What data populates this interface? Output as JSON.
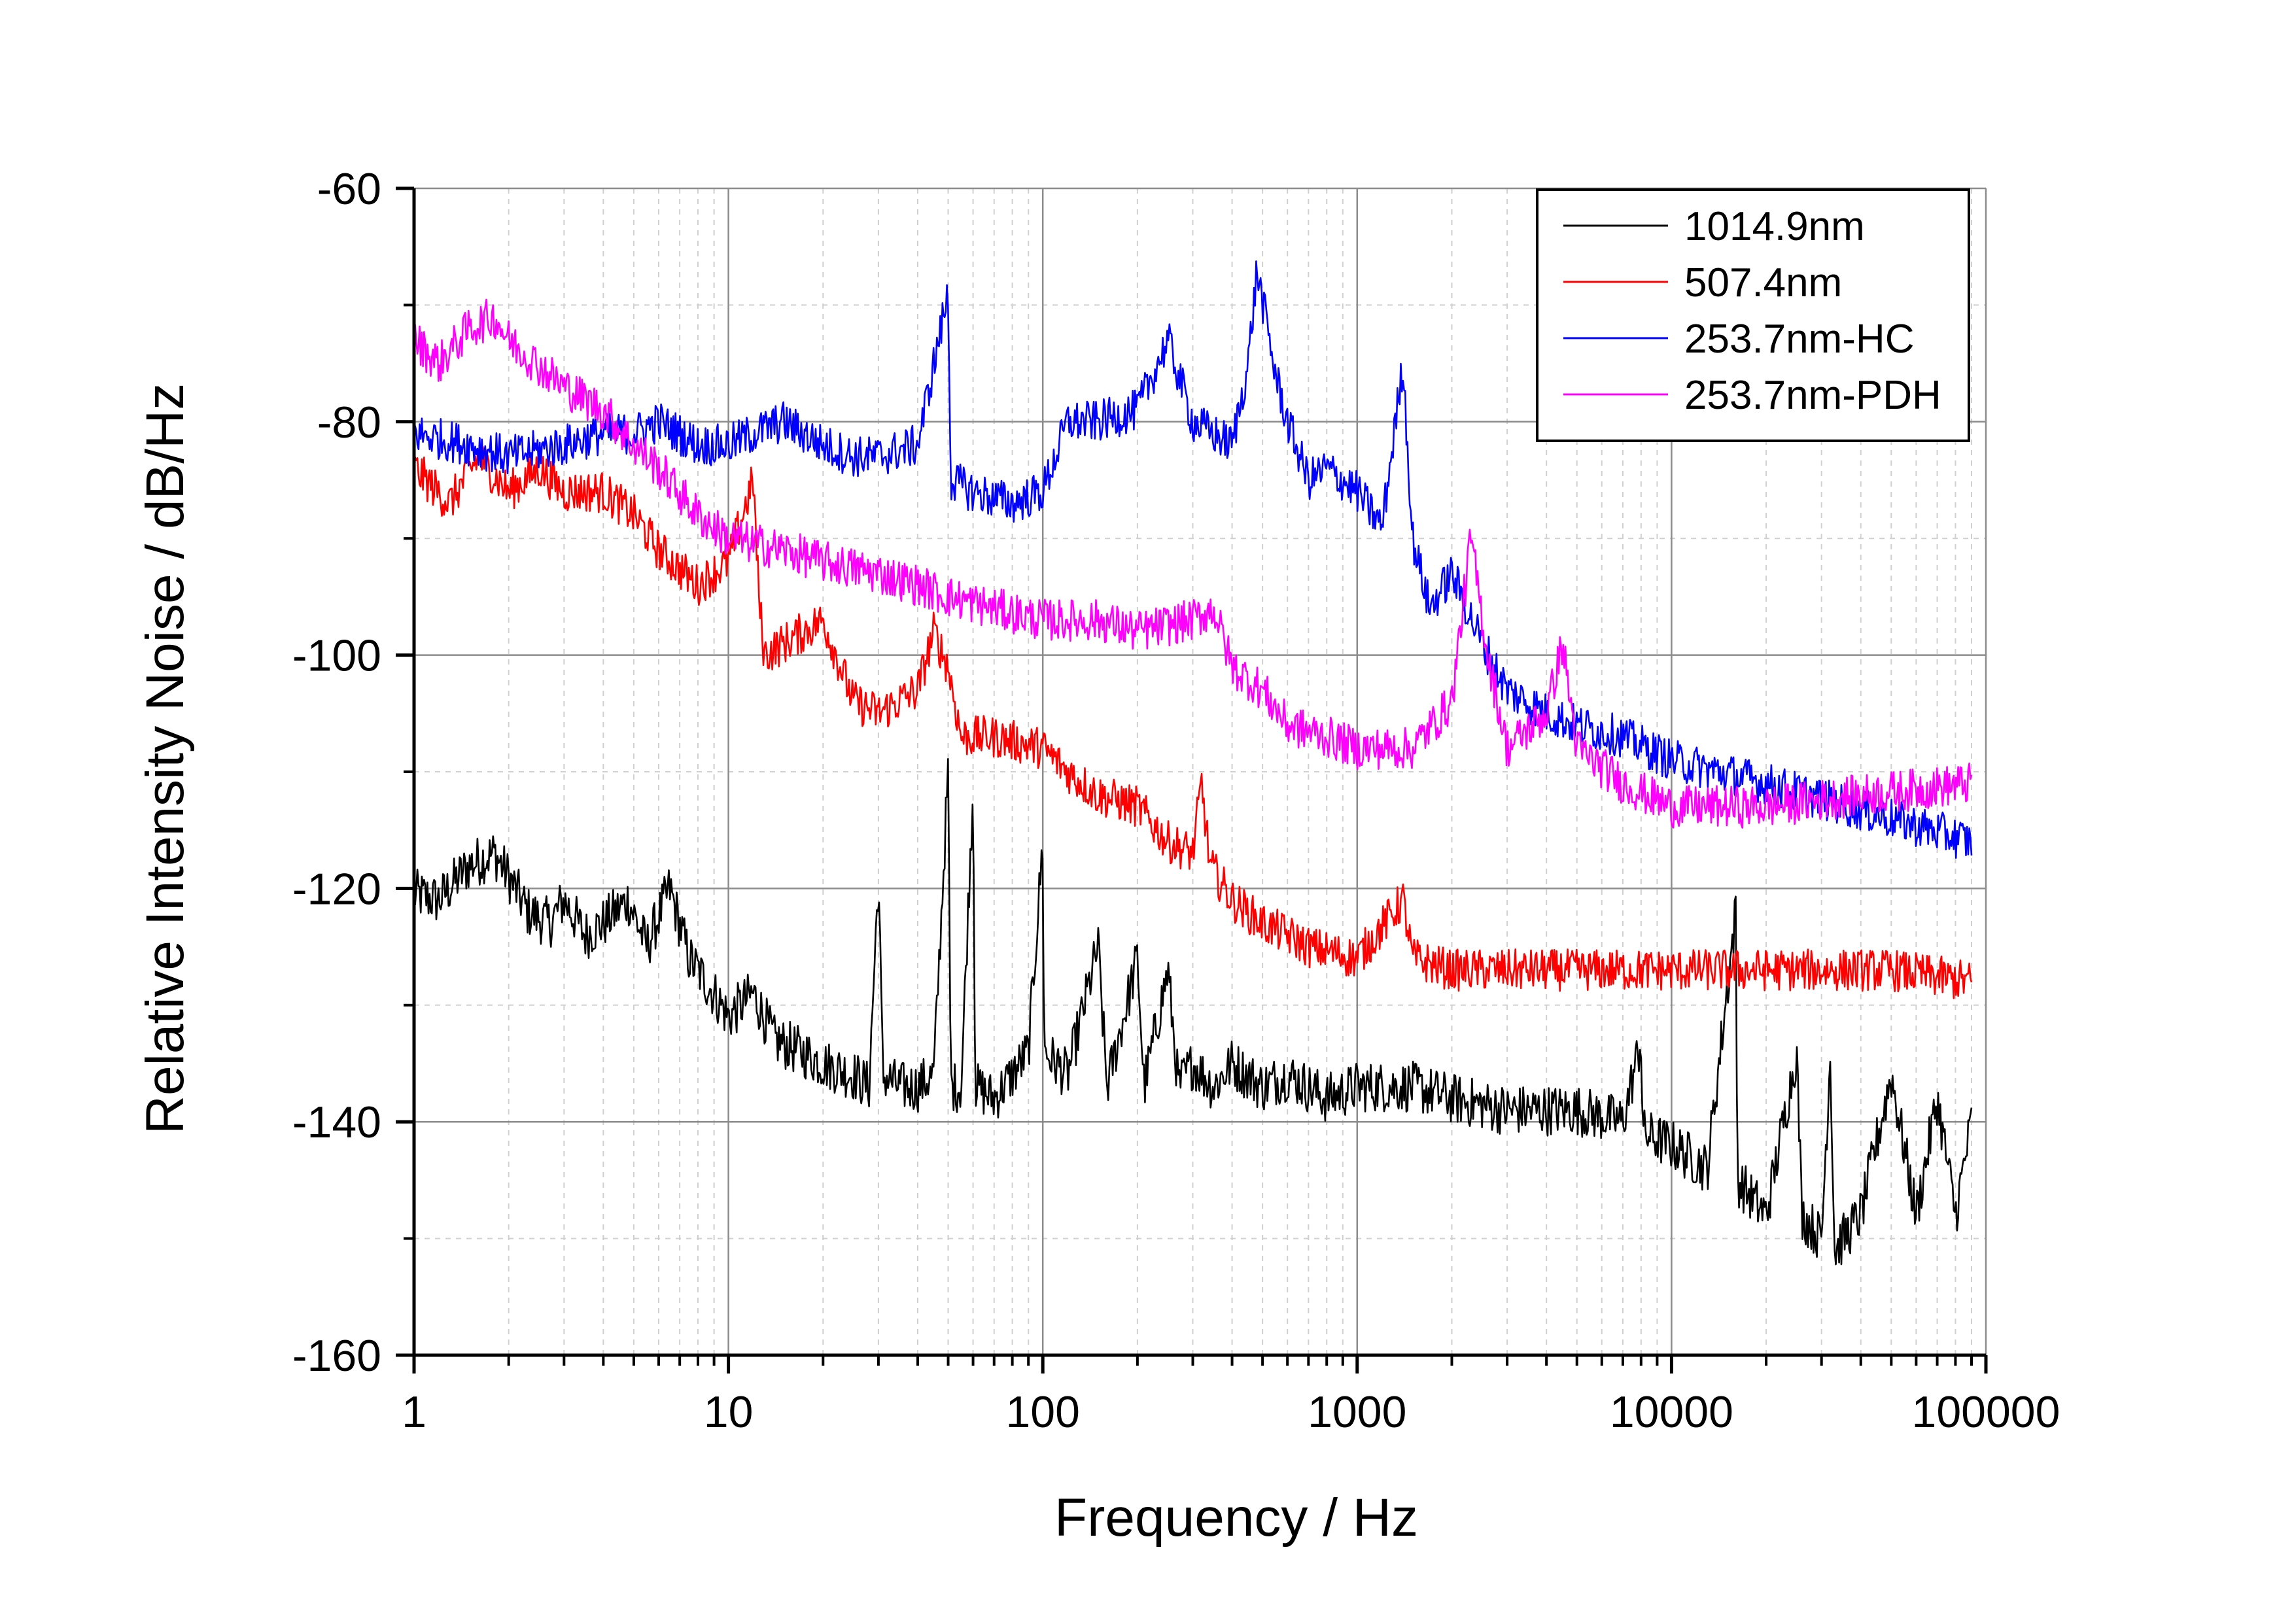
{
  "chart_data": {
    "type": "line",
    "title": "",
    "xlabel": "Frequency / Hz",
    "ylabel": "Relative Intensity Noise / dB/Hz",
    "x_scale": "log",
    "xlim": [
      1,
      100000
    ],
    "ylim": [
      -160,
      -60
    ],
    "x_ticks": [
      "1",
      "10",
      "100",
      "1000",
      "10000",
      "100000"
    ],
    "y_ticks": [
      "-60",
      "-80",
      "-100",
      "-120",
      "-140",
      "-160"
    ],
    "grid": true,
    "legend_position": "top-right",
    "series": [
      {
        "name": "1014.9nm",
        "color": "#000000",
        "points": [
          [
            1,
            -120.5
          ],
          [
            1.2,
            -121
          ],
          [
            1.5,
            -118
          ],
          [
            1.8,
            -117
          ],
          [
            2,
            -119
          ],
          [
            2.3,
            -122
          ],
          [
            2.7,
            -123
          ],
          [
            3,
            -121
          ],
          [
            3.5,
            -124
          ],
          [
            4,
            -123
          ],
          [
            4.8,
            -121
          ],
          [
            5.5,
            -125
          ],
          [
            6.5,
            -120
          ],
          [
            7.5,
            -126
          ],
          [
            9,
            -129
          ],
          [
            10,
            -131
          ],
          [
            12,
            -129
          ],
          [
            14,
            -133
          ],
          [
            17,
            -134
          ],
          [
            20,
            -135
          ],
          [
            25,
            -136
          ],
          [
            28,
            -137
          ],
          [
            30,
            -119
          ],
          [
            31,
            -136
          ],
          [
            35,
            -137
          ],
          [
            40,
            -137
          ],
          [
            45,
            -136
          ],
          [
            50,
            -110
          ],
          [
            51,
            -137
          ],
          [
            55,
            -137
          ],
          [
            60,
            -111
          ],
          [
            61,
            -137
          ],
          [
            70,
            -138
          ],
          [
            80,
            -136
          ],
          [
            90,
            -134
          ],
          [
            100,
            -116
          ],
          [
            101,
            -134
          ],
          [
            120,
            -136
          ],
          [
            150,
            -125
          ],
          [
            160,
            -137
          ],
          [
            200,
            -126
          ],
          [
            210,
            -137
          ],
          [
            250,
            -127
          ],
          [
            270,
            -137
          ],
          [
            300,
            -135
          ],
          [
            350,
            -137
          ],
          [
            400,
            -135
          ],
          [
            500,
            -137
          ],
          [
            600,
            -136
          ],
          [
            800,
            -138
          ],
          [
            1000,
            -137
          ],
          [
            1500,
            -137
          ],
          [
            2000,
            -138
          ],
          [
            3000,
            -139
          ],
          [
            5000,
            -139
          ],
          [
            7000,
            -140
          ],
          [
            8000,
            -133
          ],
          [
            8100,
            -141
          ],
          [
            10000,
            -142
          ],
          [
            13000,
            -144
          ],
          [
            16000,
            -122
          ],
          [
            16200,
            -145
          ],
          [
            20000,
            -148
          ],
          [
            25000,
            -134
          ],
          [
            26000,
            -148
          ],
          [
            30000,
            -150
          ],
          [
            32000,
            -134
          ],
          [
            33000,
            -151
          ],
          [
            40000,
            -148
          ],
          [
            50000,
            -136
          ],
          [
            60000,
            -148
          ],
          [
            70000,
            -138
          ],
          [
            80000,
            -148
          ],
          [
            90000,
            -140
          ]
        ]
      },
      {
        "name": "507.4nm",
        "color": "#ff0000",
        "points": [
          [
            1,
            -84
          ],
          [
            1.3,
            -87
          ],
          [
            1.6,
            -83
          ],
          [
            2,
            -86
          ],
          [
            2.5,
            -84
          ],
          [
            3,
            -86
          ],
          [
            4,
            -86
          ],
          [
            5,
            -88
          ],
          [
            6,
            -91
          ],
          [
            8,
            -94
          ],
          [
            10,
            -92
          ],
          [
            12,
            -85
          ],
          [
            12.5,
            -95
          ],
          [
            13,
            -100
          ],
          [
            15,
            -99
          ],
          [
            20,
            -97
          ],
          [
            25,
            -104
          ],
          [
            30,
            -105
          ],
          [
            40,
            -103
          ],
          [
            45,
            -98
          ],
          [
            50,
            -101
          ],
          [
            55,
            -107
          ],
          [
            70,
            -107
          ],
          [
            100,
            -108
          ],
          [
            120,
            -110
          ],
          [
            150,
            -112
          ],
          [
            200,
            -113
          ],
          [
            250,
            -116
          ],
          [
            300,
            -117
          ],
          [
            320,
            -111
          ],
          [
            340,
            -118
          ],
          [
            400,
            -121
          ],
          [
            500,
            -123
          ],
          [
            600,
            -124
          ],
          [
            700,
            -125
          ],
          [
            1000,
            -126
          ],
          [
            1400,
            -121
          ],
          [
            1500,
            -126
          ],
          [
            2000,
            -127
          ],
          [
            3000,
            -127
          ],
          [
            5000,
            -127
          ],
          [
            10000,
            -127
          ],
          [
            20000,
            -127
          ],
          [
            50000,
            -127
          ],
          [
            90000,
            -128
          ]
        ]
      },
      {
        "name": "253.7nm-HC",
        "color": "#0000ff",
        "points": [
          [
            1,
            -81
          ],
          [
            1.5,
            -82
          ],
          [
            2,
            -83
          ],
          [
            3,
            -82
          ],
          [
            4,
            -81
          ],
          [
            5,
            -81
          ],
          [
            6,
            -80
          ],
          [
            8,
            -82
          ],
          [
            10,
            -82
          ],
          [
            12,
            -81
          ],
          [
            15,
            -80
          ],
          [
            20,
            -82
          ],
          [
            25,
            -83
          ],
          [
            30,
            -83
          ],
          [
            40,
            -82
          ],
          [
            50,
            -69
          ],
          [
            51,
            -85
          ],
          [
            60,
            -86
          ],
          [
            80,
            -87
          ],
          [
            100,
            -86
          ],
          [
            120,
            -80
          ],
          [
            150,
            -80
          ],
          [
            200,
            -79
          ],
          [
            250,
            -73
          ],
          [
            300,
            -80
          ],
          [
            400,
            -82
          ],
          [
            450,
            -75
          ],
          [
            480,
            -67
          ],
          [
            550,
            -76
          ],
          [
            600,
            -80
          ],
          [
            700,
            -85
          ],
          [
            800,
            -84
          ],
          [
            1000,
            -86
          ],
          [
            1200,
            -89
          ],
          [
            1400,
            -75
          ],
          [
            1500,
            -90
          ],
          [
            1700,
            -96
          ],
          [
            2000,
            -93
          ],
          [
            2500,
            -99
          ],
          [
            3000,
            -103
          ],
          [
            4000,
            -105
          ],
          [
            5000,
            -106
          ],
          [
            7000,
            -107
          ],
          [
            10000,
            -109
          ],
          [
            20000,
            -111
          ],
          [
            50000,
            -114
          ],
          [
            90000,
            -116
          ]
        ]
      },
      {
        "name": "253.7nm-PDH",
        "color": "#ff00ff",
        "points": [
          [
            1,
            -73
          ],
          [
            1.2,
            -75
          ],
          [
            1.5,
            -72
          ],
          [
            1.8,
            -71
          ],
          [
            2,
            -73
          ],
          [
            3,
            -77
          ],
          [
            4,
            -79
          ],
          [
            5,
            -82
          ],
          [
            6,
            -84
          ],
          [
            8,
            -88
          ],
          [
            10,
            -90
          ],
          [
            15,
            -91
          ],
          [
            20,
            -92
          ],
          [
            30,
            -93
          ],
          [
            40,
            -94
          ],
          [
            50,
            -95
          ],
          [
            70,
            -96
          ],
          [
            100,
            -97
          ],
          [
            150,
            -97
          ],
          [
            200,
            -98
          ],
          [
            300,
            -97
          ],
          [
            350,
            -96
          ],
          [
            400,
            -101
          ],
          [
            500,
            -103
          ],
          [
            600,
            -106
          ],
          [
            800,
            -107
          ],
          [
            1000,
            -108
          ],
          [
            1500,
            -108
          ],
          [
            2000,
            -104
          ],
          [
            2300,
            -90
          ],
          [
            2600,
            -100
          ],
          [
            3000,
            -108
          ],
          [
            4000,
            -105
          ],
          [
            4500,
            -99
          ],
          [
            5000,
            -108
          ],
          [
            7000,
            -111
          ],
          [
            10000,
            -113
          ],
          [
            20000,
            -113
          ],
          [
            40000,
            -112
          ],
          [
            90000,
            -111
          ]
        ]
      }
    ]
  }
}
